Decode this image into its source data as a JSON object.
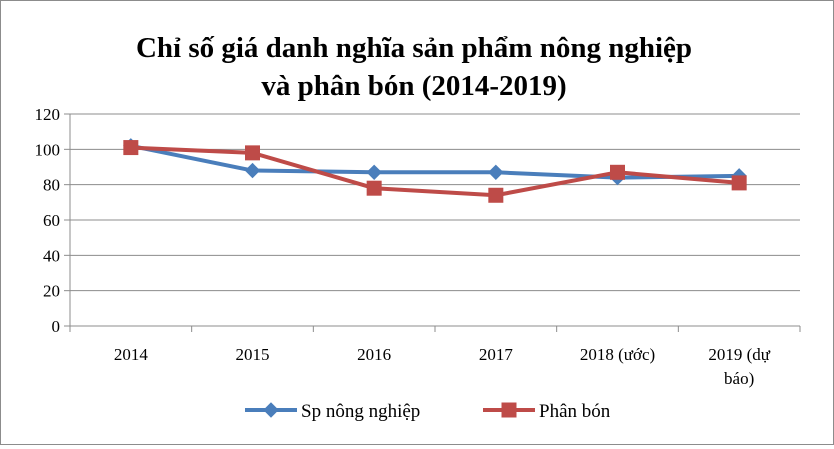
{
  "chart_data": {
    "type": "line",
    "title_lines": [
      "Chỉ số giá danh nghĩa sản phẩm nông nghiệp",
      "và phân bón (2014-2019)"
    ],
    "categories": [
      [
        "2014"
      ],
      [
        "2015"
      ],
      [
        "2016"
      ],
      [
        "2017"
      ],
      [
        "2018 (ước)"
      ],
      [
        "2019 (dự",
        "báo)"
      ]
    ],
    "ylim": [
      0,
      120
    ],
    "yticks": [
      0,
      20,
      40,
      60,
      80,
      100,
      120
    ],
    "grid": true,
    "legend_position": "bottom",
    "series": [
      {
        "name": "Sp nông nghiệp",
        "color": "#4a7ebb",
        "marker": "diamond",
        "values": [
          102,
          88,
          87,
          87,
          84,
          85
        ]
      },
      {
        "name": "Phân bón",
        "color": "#be4b48",
        "marker": "square",
        "values": [
          101,
          98,
          78,
          74,
          87,
          81
        ]
      }
    ]
  }
}
